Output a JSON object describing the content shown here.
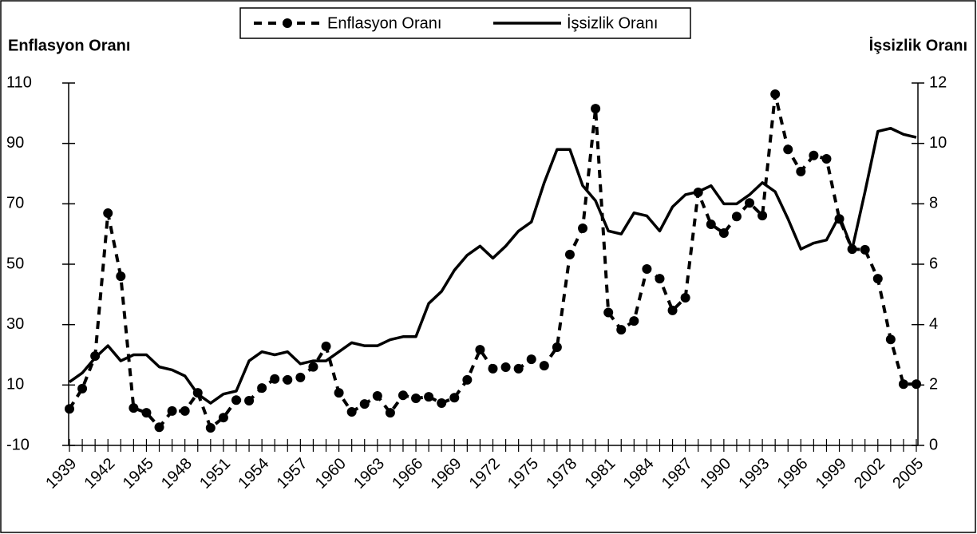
{
  "chart_data": {
    "type": "line",
    "y_label": "Enflasyon Oranı",
    "y2_label": "İşsizlik Oranı",
    "categories": [
      "1939",
      null,
      null,
      "1942",
      null,
      null,
      "1945",
      null,
      null,
      "1948",
      null,
      null,
      "1951",
      null,
      null,
      "1954",
      null,
      null,
      "1957",
      null,
      null,
      "1960",
      null,
      null,
      "1963",
      null,
      null,
      "1966",
      null,
      null,
      "1969",
      null,
      null,
      "1972",
      null,
      null,
      "1975",
      null,
      null,
      "1978",
      null,
      null,
      "1981",
      null,
      null,
      "1984",
      null,
      null,
      "1987",
      null,
      null,
      "1990",
      null,
      null,
      "1993",
      null,
      null,
      "1996",
      null,
      null,
      "1999",
      null,
      null,
      "2002",
      null,
      null,
      "2005"
    ],
    "series": [
      {
        "name": "Enflasyon Oranı",
        "color": "#000000",
        "style": "dashed",
        "marker": "circle",
        "axis": "y",
        "values": [
          2.1,
          8.8,
          19.6,
          66.9,
          46,
          2.4,
          0.8,
          -4,
          1.4,
          1.4,
          7.4,
          -4.2,
          -0.8,
          5,
          4.8,
          9,
          12,
          11.7,
          12.5,
          16,
          22.8,
          7.4,
          1.1,
          3.7,
          6.4,
          0.8,
          6.6,
          5.6,
          6.1,
          4,
          5.8,
          11.7,
          21.7,
          15.4,
          15.9,
          15.4,
          18.5,
          16.4,
          22.5,
          53.2,
          61.9,
          101.5,
          34,
          28.3,
          31.2,
          48.4,
          45.2,
          34.7,
          38.9,
          73.8,
          63.2,
          60.3,
          65.8,
          70.3,
          66.1,
          106.3,
          88,
          80.7,
          86,
          84.9,
          65,
          55,
          54.8,
          45.2,
          25.1,
          10.3,
          10.3
        ]
      },
      {
        "name": "İşsizlik Oranı",
        "color": "#000000",
        "style": "solid",
        "axis": "y2",
        "values": [
          2.1,
          2.4,
          2.9,
          3.3,
          2.8,
          3.0,
          3.0,
          2.6,
          2.5,
          2.3,
          1.7,
          1.4,
          1.7,
          1.8,
          2.8,
          3.1,
          3.0,
          3.1,
          2.7,
          2.8,
          2.8,
          3.1,
          3.4,
          3.3,
          3.3,
          3.5,
          3.6,
          3.6,
          4.7,
          5.1,
          5.8,
          6.3,
          6.6,
          6.2,
          6.6,
          7.1,
          7.4,
          8.7,
          9.8,
          9.8,
          8.6,
          8.1,
          7.1,
          7.0,
          7.7,
          7.6,
          7.1,
          7.9,
          8.3,
          8.4,
          8.6,
          8.0,
          8.0,
          8.3,
          8.7,
          8.4,
          7.5,
          6.5,
          6.7,
          6.8,
          7.6,
          6.5,
          8.4,
          10.4,
          10.5,
          10.3,
          10.2
        ]
      }
    ],
    "ylim": [
      -10,
      110
    ],
    "yticks": [
      -10,
      10,
      30,
      50,
      70,
      90,
      110
    ],
    "y2lim": [
      0,
      12
    ],
    "y2ticks": [
      0,
      2,
      4,
      6,
      8,
      10,
      12
    ],
    "legend": "top",
    "grid": false
  }
}
